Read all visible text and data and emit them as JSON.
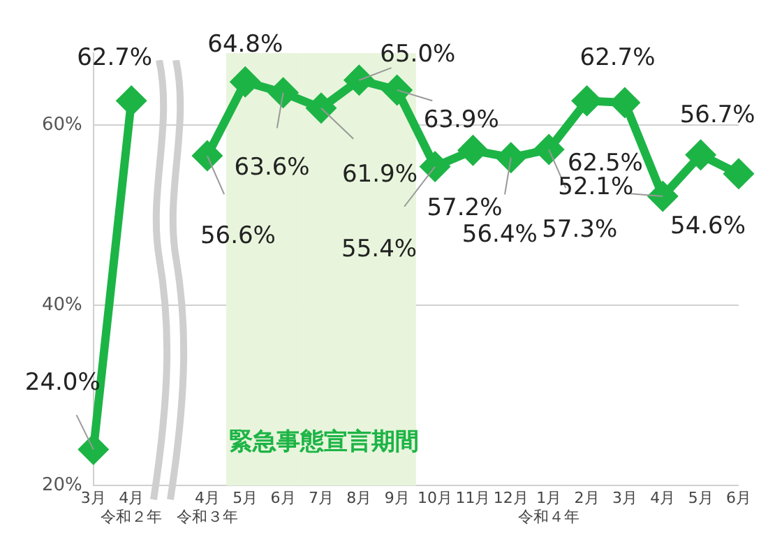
{
  "chart_data": {
    "type": "line",
    "categories": [
      "3月",
      "4月令和２年",
      null,
      "4月令和３年",
      "5月",
      "6月",
      "7月",
      "8月",
      "9月",
      "10月",
      "11月",
      "12月",
      "1月令和４年",
      "2月",
      "3月",
      "4月",
      "5月",
      "6月"
    ],
    "series": [
      {
        "color": "#1db446",
        "values": [
          24.0,
          62.7,
          null,
          56.6,
          64.8,
          63.6,
          61.9,
          65.0,
          63.9,
          55.4,
          57.2,
          56.4,
          57.3,
          62.7,
          62.5,
          52.1,
          56.7,
          54.6
        ],
        "value_labels": [
          "24.0%",
          "62.7%",
          null,
          "56.6%",
          "64.8%",
          "63.6%",
          "61.9%",
          "65.0%",
          "63.9%",
          "55.4%",
          "57.2%",
          "56.4%",
          "57.3%",
          "62.7%",
          "62.5%",
          "52.1%",
          "56.7%",
          "54.6%"
        ]
      }
    ],
    "ylim": [
      20,
      68
    ],
    "yticks": [
      {
        "value": 20,
        "label": "20%"
      },
      {
        "value": 40,
        "label": "40%"
      },
      {
        "value": 60,
        "label": "60%"
      }
    ],
    "grid": "y",
    "marker": "diamond",
    "line_style": "solid",
    "legend": false,
    "bands": [
      {
        "axis": "x",
        "from": "5月",
        "to": "6月",
        "label": "緊急事態宣言期間",
        "color": "#e8f5dc"
      },
      {
        "axis": "x",
        "from": "7月",
        "to": "9月",
        "color": "#e8f5dc"
      }
    ]
  }
}
